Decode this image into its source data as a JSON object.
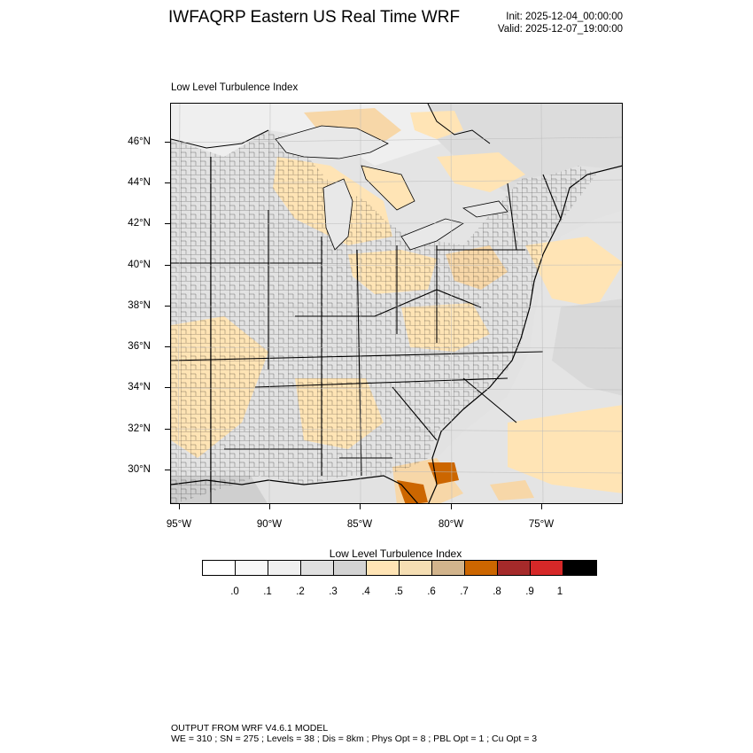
{
  "header": {
    "title": "IWFAQRP Eastern US Real Time WRF",
    "init": "Init: 2025-12-04_00:00:00",
    "valid": "Valid: 2025-12-07_19:00:00"
  },
  "field_title": "Low Level Turbulence Index",
  "map": {
    "lat_labels": [
      "46°N",
      "44°N",
      "42°N",
      "40°N",
      "38°N",
      "36°N",
      "34°N",
      "32°N",
      "30°N"
    ],
    "lon_labels": [
      "95°W",
      "90°W",
      "85°W",
      "80°W",
      "75°W"
    ],
    "colors": {
      "land_base": "#e6e6e6",
      "ocean_base": "#e2e2e2",
      "light": "#f2f2f2",
      "mid": "#d9d9d9",
      "tan_light": "#ffe4b5",
      "tan": "#f7d7a8",
      "tan_dark": "#d2b48c",
      "orange": "#cc6600"
    }
  },
  "colorbar": {
    "title": "Low Level Turbulence Index",
    "colors": [
      "#ffffff",
      "#f8f8f8",
      "#f0f0f0",
      "#e0e0e0",
      "#d3d3d3",
      "#ffe4b5",
      "#f5deb3",
      "#d2b48c",
      "#cc6600",
      "#a52a2a",
      "#d62828",
      "#000000"
    ],
    "labels": [
      ".0",
      ".1",
      ".2",
      ".3",
      ".4",
      ".5",
      ".6",
      ".7",
      ".8",
      ".9",
      "1"
    ]
  },
  "footer": {
    "line1": "OUTPUT FROM WRF V4.6.1 MODEL",
    "line2": "WE = 310 ; SN = 275 ; Levels = 38 ; Dis = 8km ; Phys Opt = 8 ; PBL Opt = 1 ; Cu Opt = 3"
  }
}
